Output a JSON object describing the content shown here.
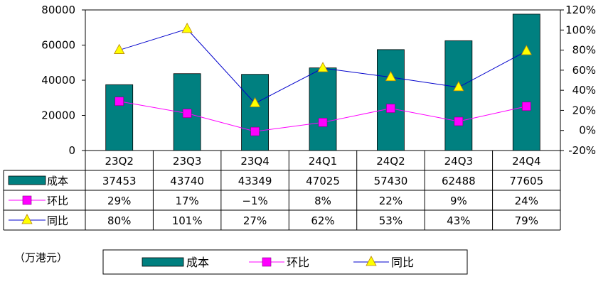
{
  "chart_data": {
    "type": "bar",
    "categories": [
      "23Q2",
      "23Q3",
      "23Q4",
      "24Q1",
      "24Q2",
      "24Q3",
      "24Q4"
    ],
    "series": [
      {
        "name": "成本",
        "type": "bar",
        "axis": "left",
        "values": [
          37453,
          43740,
          43349,
          47025,
          57430,
          62488,
          77605
        ],
        "labels": [
          "37453",
          "43740",
          "43349",
          "47025",
          "57430",
          "62488",
          "77605"
        ]
      },
      {
        "name": "环比",
        "type": "line",
        "axis": "right",
        "marker": "square",
        "values": [
          29,
          17,
          -1,
          8,
          22,
          9,
          24
        ],
        "labels": [
          "29%",
          "17%",
          "-1%",
          "8%",
          "22%",
          "9%",
          "24%"
        ]
      },
      {
        "name": "同比",
        "type": "line",
        "axis": "right",
        "marker": "triangle",
        "values": [
          80,
          101,
          27,
          62,
          53,
          43,
          79
        ],
        "labels": [
          "80%",
          "101%",
          "27%",
          "62%",
          "53%",
          "43%",
          "79%"
        ]
      }
    ],
    "ylim": [
      0,
      80000
    ],
    "y_ticks": [
      "80000",
      "60000",
      "40000",
      "20000",
      "0"
    ],
    "y2lim": [
      -20,
      120
    ],
    "y2_ticks": [
      "120%",
      "100%",
      "80%",
      "60%",
      "40%",
      "20%",
      "0%",
      "-20%"
    ],
    "unit_label": "（万港元）",
    "legend_position": "bottom",
    "grid": false,
    "colors": {
      "bar": "#008080",
      "mom": "#ff00ff",
      "yoy_line": "#0000cc",
      "yoy_marker": "#ffff00"
    }
  }
}
